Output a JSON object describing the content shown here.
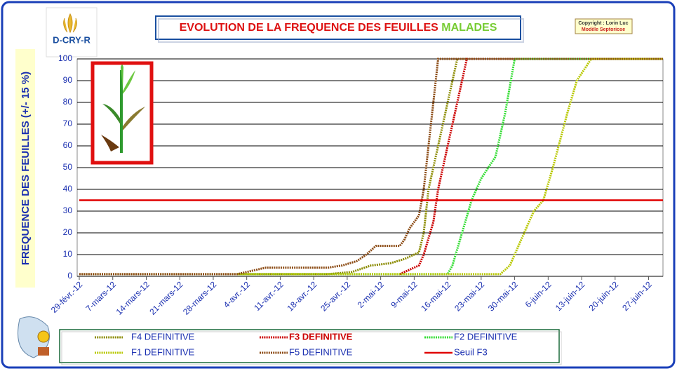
{
  "chart_data": {
    "type": "line",
    "title": "EVOLUTION DE LA FREQUENCE DES FEUILLES",
    "title_highlight": "MALADES",
    "copyright": "Copyright : Lorin Luc",
    "model": "Modèle Septoriose",
    "logo": "D-CRY-R",
    "y_label": "FREQUENCE DES FEUILLES (+/- 15 %)",
    "xlim": [
      "2012-02-29",
      "2012-06-30"
    ],
    "ylim": [
      0,
      100
    ],
    "yticks": [
      0,
      10,
      20,
      30,
      40,
      50,
      60,
      70,
      80,
      90,
      100
    ],
    "xticks": [
      {
        "value": "2012-02-29",
        "label": "29-févr.-12"
      },
      {
        "value": "2012-03-07",
        "label": "7-mars-12"
      },
      {
        "value": "2012-03-14",
        "label": "14-mars-12"
      },
      {
        "value": "2012-03-21",
        "label": "21-mars-12"
      },
      {
        "value": "2012-03-28",
        "label": "28-mars-12"
      },
      {
        "value": "2012-04-04",
        "label": "4-avr.-12"
      },
      {
        "value": "2012-04-11",
        "label": "11-avr.-12"
      },
      {
        "value": "2012-04-18",
        "label": "18-avr.-12"
      },
      {
        "value": "2012-04-25",
        "label": "25-avr.-12"
      },
      {
        "value": "2012-05-02",
        "label": "2-mai-12"
      },
      {
        "value": "2012-05-09",
        "label": "9-mai-12"
      },
      {
        "value": "2012-05-16",
        "label": "16-mai-12"
      },
      {
        "value": "2012-05-23",
        "label": "23-mai-12"
      },
      {
        "value": "2012-05-30",
        "label": "30-mai-12"
      },
      {
        "value": "2012-06-06",
        "label": "6-juin-12"
      },
      {
        "value": "2012-06-13",
        "label": "13-juin-12"
      },
      {
        "value": "2012-06-20",
        "label": "20-juin-12"
      },
      {
        "value": "2012-06-27",
        "label": "27-juin-12"
      }
    ],
    "grid": true,
    "series": [
      {
        "name": "F4 DEFINITIVE",
        "color": "#8b8b00",
        "dotted": true,
        "x": [
          "2012-02-29",
          "2012-04-21",
          "2012-04-26",
          "2012-04-30",
          "2012-05-04",
          "2012-05-07",
          "2012-05-10",
          "2012-05-11",
          "2012-05-12",
          "2012-05-14",
          "2012-05-16",
          "2012-05-18",
          "2012-06-30"
        ],
        "values": [
          1,
          1,
          2,
          5,
          6,
          8,
          11,
          20,
          40,
          60,
          80,
          100,
          100
        ]
      },
      {
        "name": "F3 DEFINITIVE",
        "color": "#cc0000",
        "dotted": true,
        "x": [
          "2012-05-06",
          "2012-05-07",
          "2012-05-10",
          "2012-05-11",
          "2012-05-13",
          "2012-05-14",
          "2012-05-16",
          "2012-05-18",
          "2012-05-20",
          "2012-06-30"
        ],
        "values": [
          1,
          2,
          5,
          10,
          25,
          40,
          60,
          80,
          100,
          100
        ]
      },
      {
        "name": "F2 DEFINITIVE",
        "color": "#33dd33",
        "dotted": true,
        "x": [
          "2012-04-02",
          "2012-05-16",
          "2012-05-17",
          "2012-05-19",
          "2012-05-21",
          "2012-05-23",
          "2012-05-26",
          "2012-05-28",
          "2012-05-30",
          "2012-06-30"
        ],
        "values": [
          1,
          1,
          5,
          20,
          35,
          45,
          55,
          75,
          100,
          100
        ]
      },
      {
        "name": "F1 DEFINITIVE",
        "color": "#b8c800",
        "dotted": true,
        "x": [
          "2012-04-02",
          "2012-05-27",
          "2012-05-29",
          "2012-06-01",
          "2012-06-03",
          "2012-06-05",
          "2012-06-07",
          "2012-06-10",
          "2012-06-12",
          "2012-06-15",
          "2012-06-30"
        ],
        "values": [
          1,
          1,
          5,
          20,
          30,
          35,
          50,
          75,
          90,
          100,
          100
        ]
      },
      {
        "name": "F5 DEFINITIVE",
        "color": "#8b4a13",
        "dotted": true,
        "x": [
          "2012-02-29",
          "2012-04-02",
          "2012-04-08",
          "2012-04-21",
          "2012-04-24",
          "2012-04-27",
          "2012-04-29",
          "2012-05-01",
          "2012-05-06",
          "2012-05-07",
          "2012-05-08",
          "2012-05-10",
          "2012-05-11",
          "2012-05-12",
          "2012-05-13",
          "2012-05-14",
          "2012-06-30"
        ],
        "values": [
          1,
          1,
          4,
          4,
          5,
          7,
          10,
          14,
          14,
          17,
          22,
          28,
          40,
          60,
          80,
          100,
          100
        ]
      },
      {
        "name": "Seuil F3",
        "color": "#e00000",
        "dotted": false,
        "x": [
          "2012-02-29",
          "2012-06-30"
        ],
        "values": [
          35,
          35
        ]
      }
    ]
  }
}
